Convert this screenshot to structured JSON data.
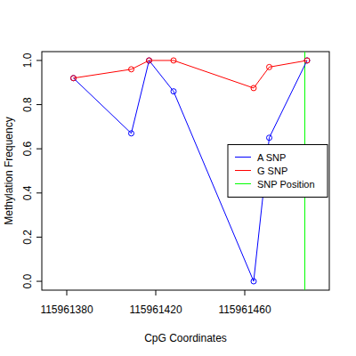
{
  "chart_data": {
    "type": "line",
    "x_label": "CpG Coordinates",
    "y_label": "Methylation Frequency",
    "series": [
      {
        "name": "A SNP",
        "color": "#0000ff",
        "marker": "open-circle",
        "line_style": "solid",
        "x": [
          115961383,
          115961409,
          115961417,
          115961428,
          115961464,
          115961471,
          115961488
        ],
        "values": [
          0.92,
          0.67,
          1.0,
          0.86,
          0.0,
          0.65,
          1.0
        ]
      },
      {
        "name": "G SNP",
        "color": "#ff0000",
        "marker": "open-circle",
        "line_style": "solid",
        "x": [
          115961383,
          115961409,
          115961417,
          115961428,
          115961464,
          115961471,
          115961488
        ],
        "values": [
          0.92,
          0.96,
          1.0,
          1.0,
          0.875,
          0.97,
          1.0
        ]
      }
    ],
    "vlines": [
      {
        "name": "SNP Position",
        "color": "#00ff00",
        "x": 115961487
      }
    ],
    "xlim": [
      115961368.8,
      115961498
    ],
    "xticks": [
      115961380,
      115961420,
      115961460
    ],
    "ylim": [
      -0.04,
      1.04
    ],
    "yticks": [
      {
        "value": 0,
        "label": "0.0"
      },
      0.2,
      0.4,
      0.6,
      0.8,
      {
        "value": 1,
        "label": "1.0"
      }
    ],
    "legend": "right",
    "grid": false
  }
}
